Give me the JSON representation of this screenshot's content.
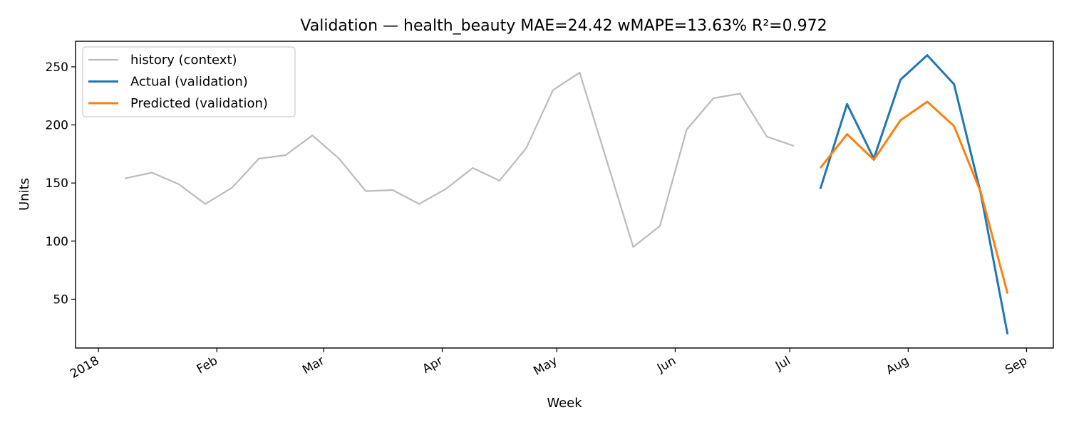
{
  "chart_data": {
    "type": "line",
    "title": "Validation — health_beauty   MAE=24.42  wMAPE=13.63%  R²=0.972",
    "xlabel": "Week",
    "ylabel": "Units",
    "x_ticks": [
      {
        "date": "2018-01-01",
        "label": "2018"
      },
      {
        "date": "2018-02-01",
        "label": "Feb"
      },
      {
        "date": "2018-03-01",
        "label": "Mar"
      },
      {
        "date": "2018-04-01",
        "label": "Apr"
      },
      {
        "date": "2018-05-01",
        "label": "May"
      },
      {
        "date": "2018-06-01",
        "label": "Jun"
      },
      {
        "date": "2018-07-01",
        "label": "Jul"
      },
      {
        "date": "2018-08-01",
        "label": "Aug"
      },
      {
        "date": "2018-09-01",
        "label": "Sep"
      }
    ],
    "y_ticks": [
      50,
      100,
      150,
      200,
      250
    ],
    "xlim": [
      "2017-12-26",
      "2018-09-08"
    ],
    "ylim": [
      8,
      272
    ],
    "grid": false,
    "legend_position": "top-left",
    "series": [
      {
        "name": "history (context)",
        "color": "#bbbbbb",
        "x": [
          "2018-01-08",
          "2018-01-15",
          "2018-01-22",
          "2018-01-29",
          "2018-02-05",
          "2018-02-12",
          "2018-02-19",
          "2018-02-26",
          "2018-03-05",
          "2018-03-12",
          "2018-03-19",
          "2018-03-26",
          "2018-04-02",
          "2018-04-09",
          "2018-04-16",
          "2018-04-23",
          "2018-04-30",
          "2018-05-07",
          "2018-05-14",
          "2018-05-21",
          "2018-05-28",
          "2018-06-04",
          "2018-06-11",
          "2018-06-18",
          "2018-06-25",
          "2018-07-02"
        ],
        "y": [
          154,
          159,
          149,
          132,
          146,
          171,
          174,
          191,
          171,
          143,
          144,
          132,
          145,
          163,
          152,
          180,
          230,
          245,
          170,
          95,
          113,
          196,
          223,
          227,
          190,
          182
        ]
      },
      {
        "name": "Actual (validation)",
        "color": "#1f77b4",
        "x": [
          "2018-07-09",
          "2018-07-16",
          "2018-07-23",
          "2018-07-30",
          "2018-08-06",
          "2018-08-13",
          "2018-08-20",
          "2018-08-27"
        ],
        "y": [
          145,
          218,
          171,
          239,
          260,
          235,
          141,
          20
        ]
      },
      {
        "name": "Predicted (validation)",
        "color": "#ff7f0e",
        "x": [
          "2018-07-09",
          "2018-07-16",
          "2018-07-23",
          "2018-07-30",
          "2018-08-06",
          "2018-08-13",
          "2018-08-20",
          "2018-08-27"
        ],
        "y": [
          163,
          192,
          170,
          204,
          220,
          199,
          142,
          55
        ]
      }
    ]
  }
}
